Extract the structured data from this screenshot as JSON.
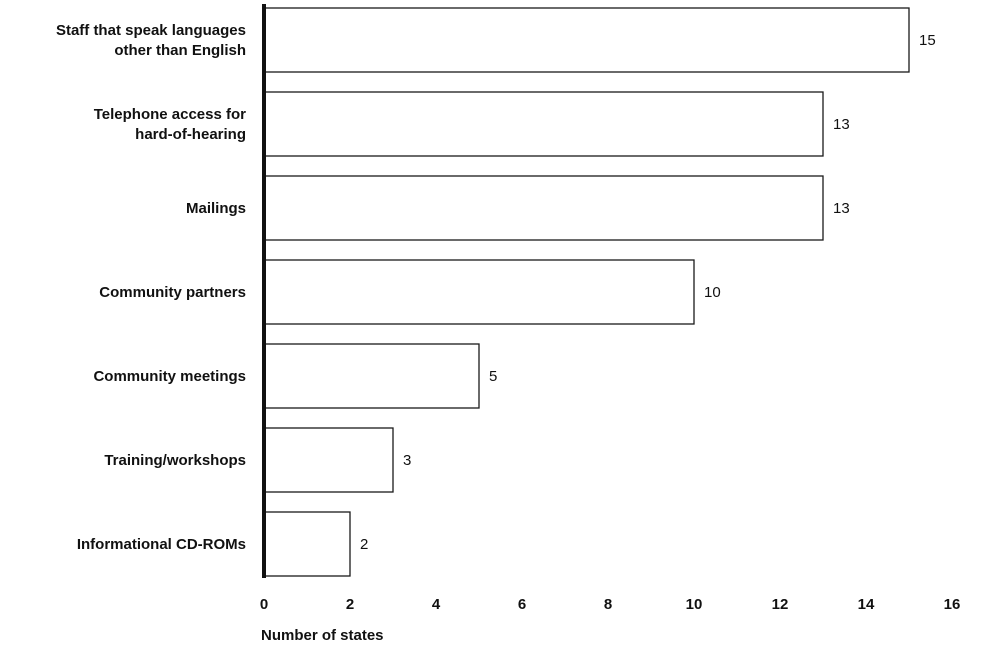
{
  "chart_data": {
    "type": "bar",
    "orientation": "horizontal",
    "categories": [
      "Staff that speak languages other than English",
      "Telephone access for hard-of-hearing",
      "Mailings",
      "Community partners",
      "Community meetings",
      "Training/workshops",
      "Informational CD-ROMs"
    ],
    "category_lines": [
      [
        "Staff that speak languages",
        "other than English"
      ],
      [
        "Telephone access for",
        "hard-of-hearing"
      ],
      [
        "Mailings"
      ],
      [
        "Community partners"
      ],
      [
        "Community meetings"
      ],
      [
        "Training/workshops"
      ],
      [
        "Informational CD-ROMs"
      ]
    ],
    "values": [
      15,
      13,
      13,
      10,
      5,
      3,
      2
    ],
    "value_labels": [
      "15",
      "13",
      "13",
      "10",
      "5",
      "3",
      "2"
    ],
    "xticks": [
      "0",
      "2",
      "4",
      "6",
      "8",
      "10",
      "12",
      "14",
      "16"
    ],
    "xlim": [
      0,
      16
    ],
    "xlabel": "Number of states",
    "ylabel": "",
    "title": "",
    "grid": false,
    "legend": "none",
    "colors": {
      "bar_fill": "#ffffff",
      "bar_stroke": "#1a1a1a",
      "axis": "#111111",
      "text": "#111111"
    }
  }
}
